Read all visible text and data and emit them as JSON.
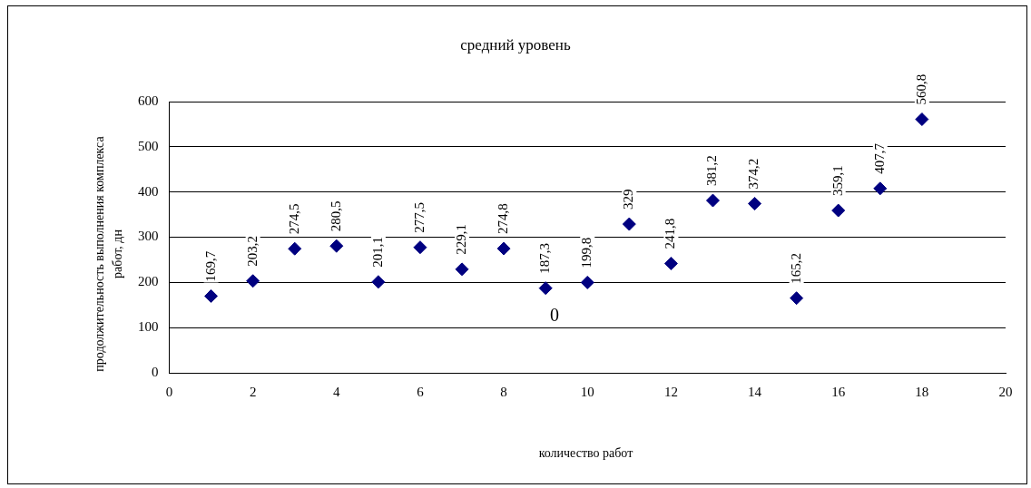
{
  "chart_data": {
    "type": "scatter",
    "title": "средний уровень",
    "xlabel": "количество работ",
    "ylabel": "продолжительность выполнения комплекса работ, дн",
    "x": [
      1,
      2,
      3,
      4,
      5,
      6,
      7,
      8,
      9,
      10,
      11,
      12,
      13,
      14,
      15,
      16,
      17,
      18
    ],
    "series": [
      {
        "color": "#000080",
        "values": [
          169.7,
          203.2,
          274.5,
          280.5,
          201.1,
          277.5,
          229.1,
          274.8,
          187.3,
          199.8,
          329,
          241.8,
          381.2,
          374.2,
          165.2,
          359.1,
          407.7,
          560.8
        ],
        "value_labels": [
          "169,7",
          "203,2",
          "274,5",
          "280,5",
          "201,1",
          "277,5",
          "229,1",
          "274,8",
          "187,3",
          "199,8",
          "329",
          "241,8",
          "381,2",
          "374,2",
          "165,2",
          "359,1",
          "407,7",
          "560,8"
        ]
      }
    ],
    "xlim": [
      0,
      20
    ],
    "xticks": [
      0,
      2,
      4,
      6,
      8,
      10,
      12,
      14,
      16,
      18,
      20
    ],
    "ylim": [
      0,
      600
    ],
    "yticks": [
      0,
      100,
      200,
      300,
      400,
      500,
      600
    ],
    "grid": "y",
    "legend": false,
    "marker": "diamond",
    "annotations": [
      "0"
    ]
  }
}
